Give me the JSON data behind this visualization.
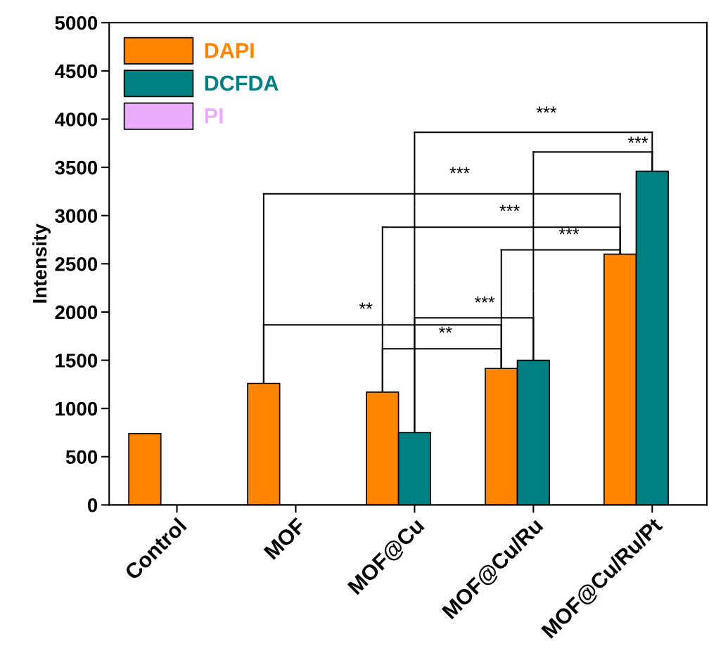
{
  "chart_data": {
    "type": "bar",
    "ylabel": "Intensity",
    "categories": [
      "Control",
      "MOF",
      "MOF@Cu",
      "MOF@Cu/Ru",
      "MOF@Cu/Ru/Pt"
    ],
    "series": [
      {
        "name": "DAPI",
        "color": "#ff8400",
        "values": [
          740,
          1260,
          1170,
          1415,
          2600
        ]
      },
      {
        "name": "DCFDA",
        "color": "#008080",
        "values": [
          null,
          null,
          750,
          1500,
          3460
        ]
      },
      {
        "name": "PI",
        "color": "#ecacfc",
        "values": [
          null,
          null,
          null,
          null,
          null
        ]
      }
    ],
    "ylim": [
      0,
      5000
    ],
    "yticks": [
      0,
      500,
      1000,
      1500,
      2000,
      2500,
      3000,
      3500,
      4000,
      4500,
      5000
    ],
    "grid": false,
    "legend": "top left",
    "annotations": [
      "***",
      "***",
      "***",
      "***",
      "***",
      "***",
      "**",
      "**"
    ]
  }
}
